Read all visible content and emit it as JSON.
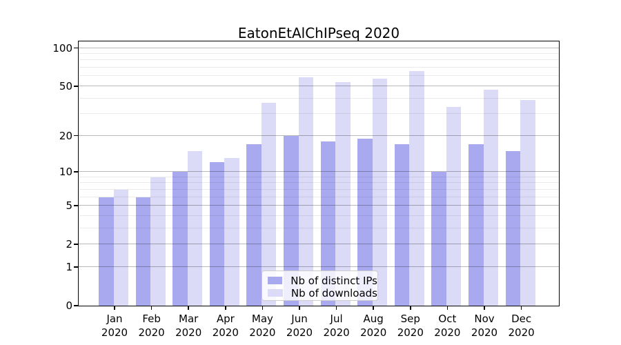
{
  "title": "EatonEtAlChIPseq 2020",
  "chart_data": {
    "type": "bar",
    "title": "EatonEtAlChIPseq 2020",
    "categories": [
      "Jan 2020",
      "Feb 2020",
      "Mar 2020",
      "Apr 2020",
      "May 2020",
      "Jun 2020",
      "Jul 2020",
      "Aug 2020",
      "Sep 2020",
      "Oct 2020",
      "Nov 2020",
      "Dec 2020"
    ],
    "series": [
      {
        "name": "Nb of distinct IPs",
        "color": "#a9a9ef",
        "values": [
          6,
          6,
          10,
          12,
          17,
          20,
          18,
          19,
          17,
          10,
          17,
          15
        ]
      },
      {
        "name": "Nb of downloads",
        "color": "#dbdbf8",
        "values": [
          7,
          9,
          15,
          13,
          37,
          59,
          54,
          57,
          66,
          34,
          47,
          39
        ]
      }
    ],
    "xlabel": "",
    "ylabel": "",
    "yscale": "log1p",
    "y_major_ticks": [
      0,
      1,
      2,
      5,
      10,
      20,
      50,
      100
    ],
    "y_minor_ticks": [
      3,
      4,
      6,
      7,
      8,
      9,
      30,
      40,
      60,
      70,
      80,
      90
    ],
    "ylim": [
      0,
      113
    ],
    "grid": true,
    "legend_position": "lower center",
    "background_color": "#ffffff",
    "axis_color": "#000000"
  },
  "legend": {
    "items": [
      {
        "label": "Nb of distinct IPs",
        "color": "#a9a9ef"
      },
      {
        "label": "Nb of downloads",
        "color": "#dbdbf8"
      }
    ]
  }
}
